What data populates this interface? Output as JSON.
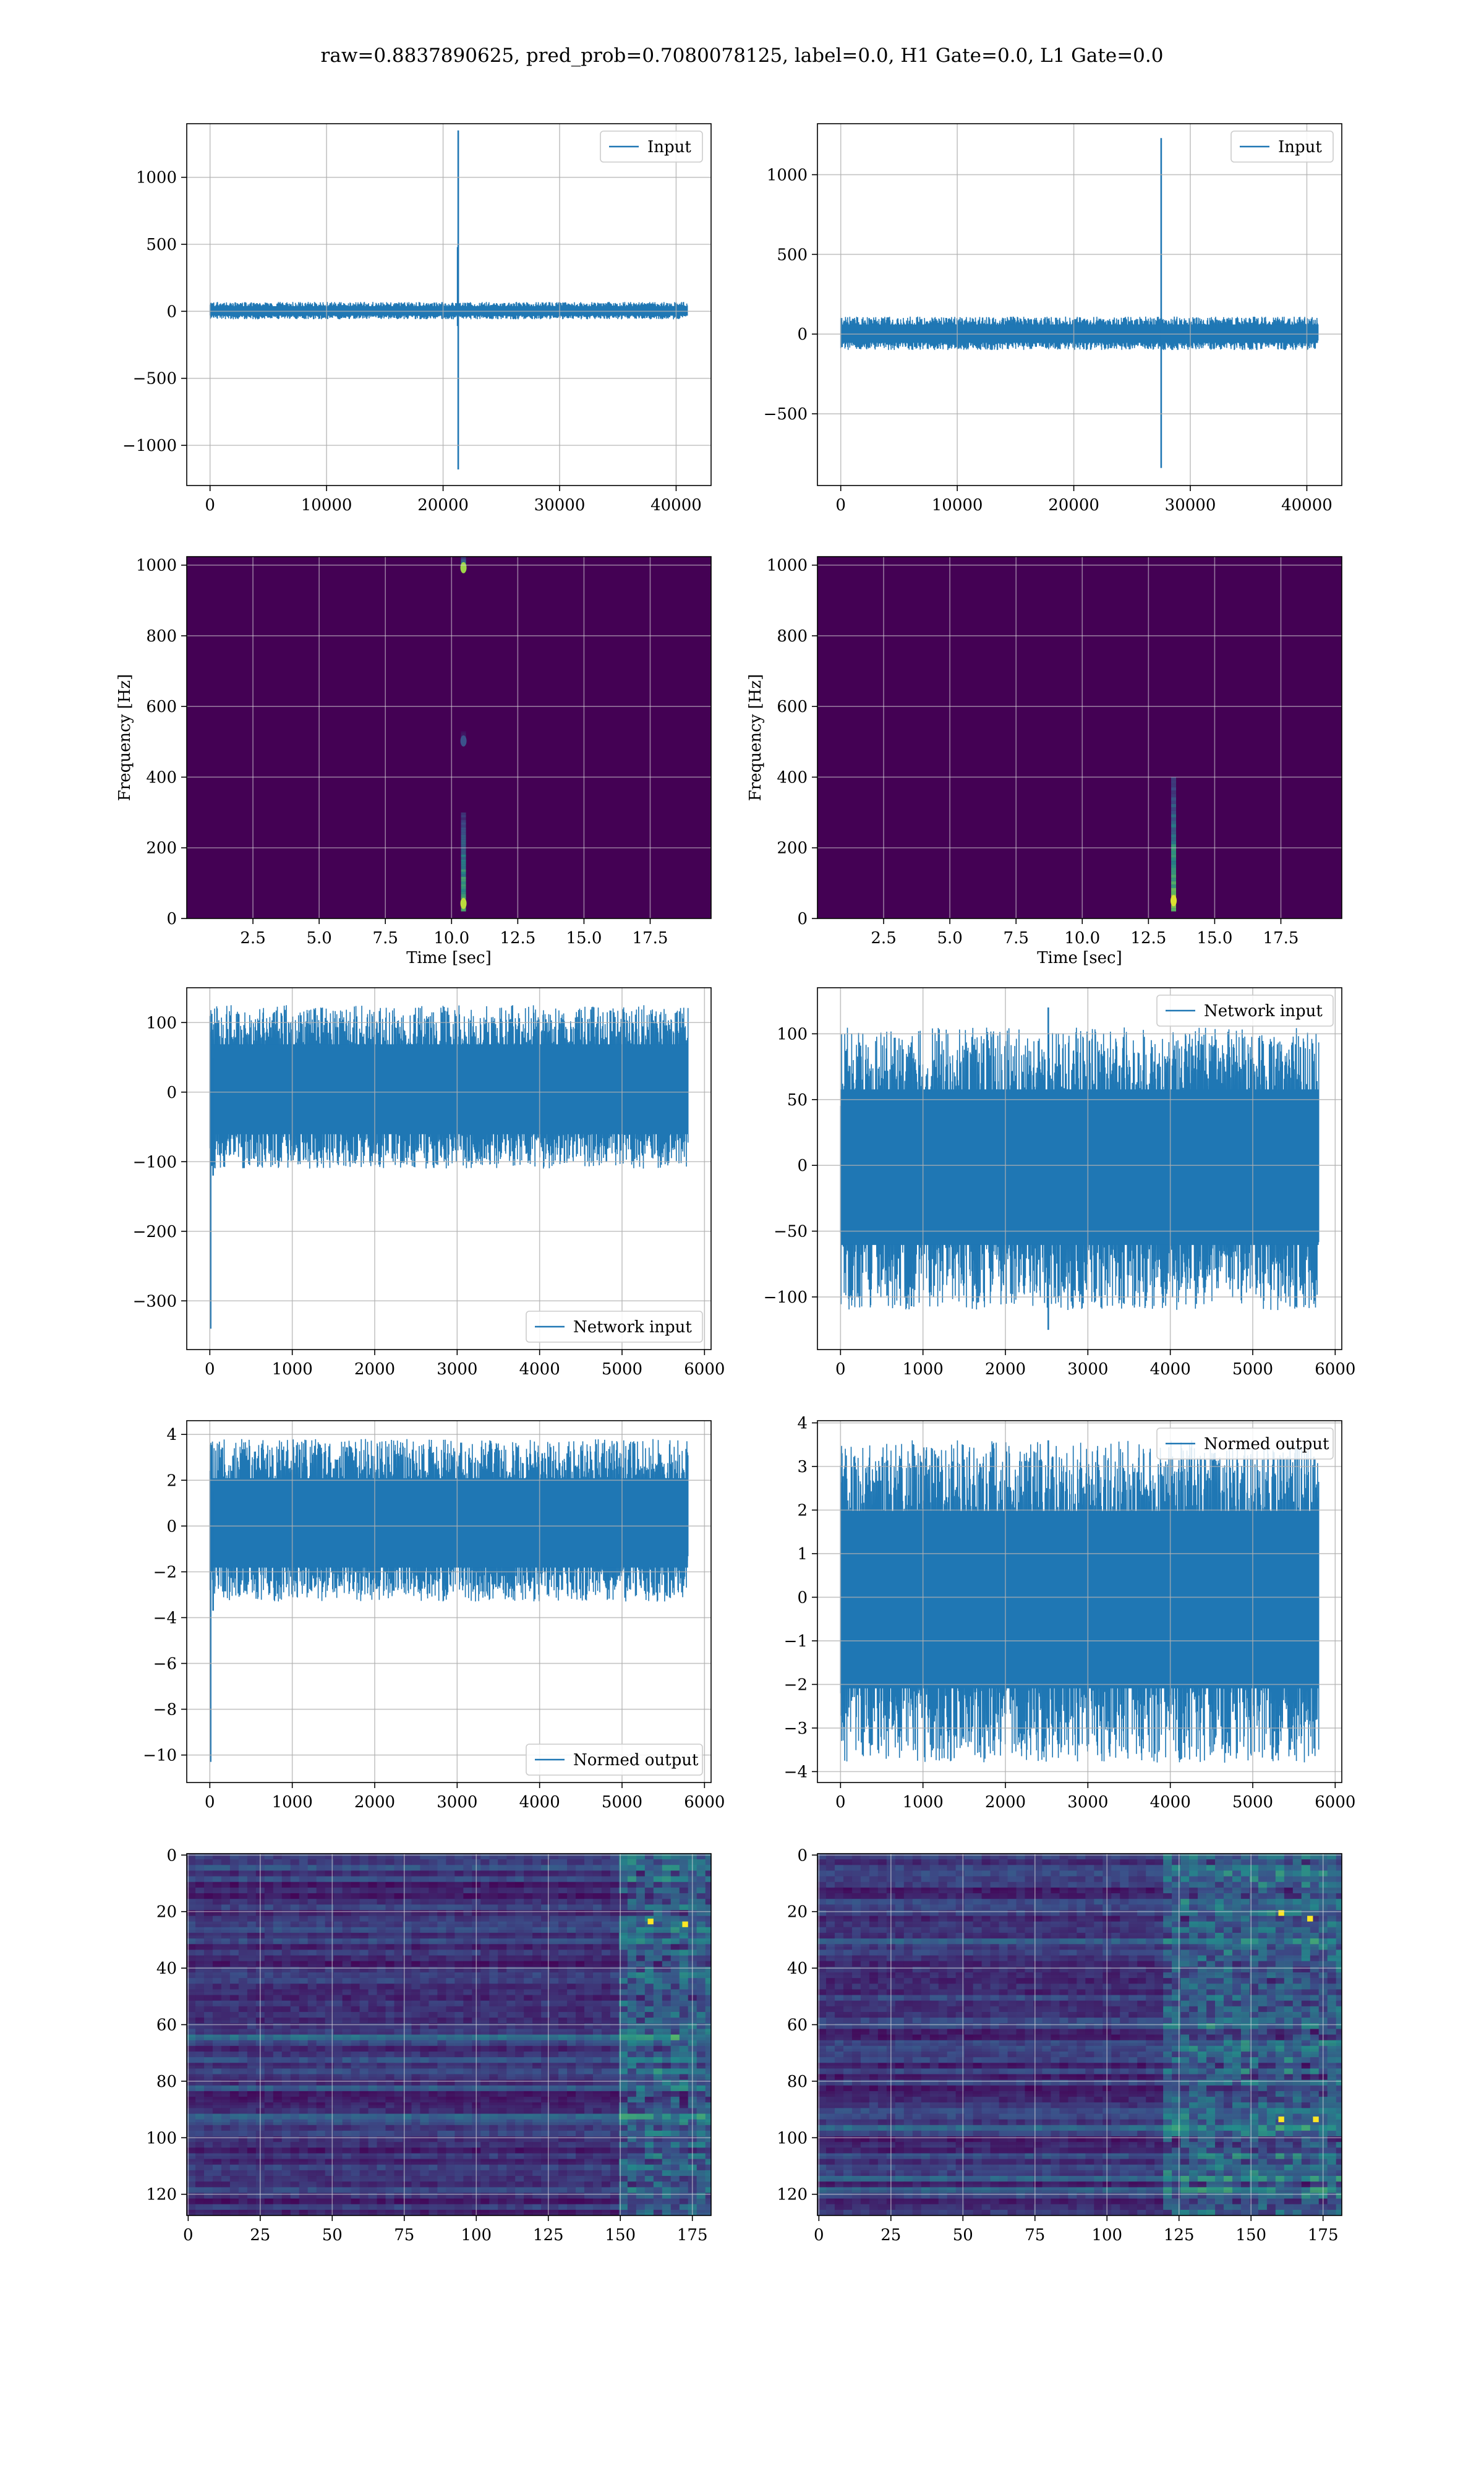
{
  "figure": {
    "title": "raw=0.8837890625, pred_prob=0.7080078125, label=0.0, H1 Gate=0.0, L1 Gate=0.0",
    "colors": {
      "line": "#1f77b4",
      "grid": "#b0b0b0",
      "viridis_low": "#440154",
      "viridis_high": "#fde725"
    }
  },
  "chart_data": [
    {
      "id": "p00",
      "type": "line",
      "legend": "Input",
      "legend_loc": "upper right",
      "xlim": [
        -2000,
        43000
      ],
      "ylim": [
        -1300,
        1400
      ],
      "xticks": [
        0,
        10000,
        20000,
        30000,
        40000
      ],
      "yticks": [
        -1000,
        -500,
        0,
        500,
        1000
      ],
      "xticklabels": [
        "0",
        "10000",
        "20000",
        "30000",
        "40000"
      ],
      "yticklabels": [
        "−1000",
        "−500",
        "0",
        "500",
        "1000"
      ],
      "signal": {
        "x_start": 0,
        "x_end": 40960,
        "noise_band": [
          -60,
          70
        ],
        "spikes": [
          {
            "x": 21300,
            "ymax": 1350,
            "ymin": -1180
          },
          {
            "x": 21250,
            "ymax": 480,
            "ymin": -110
          }
        ]
      },
      "grid": true
    },
    {
      "id": "p01",
      "type": "line",
      "legend": "Input",
      "legend_loc": "upper right",
      "xlim": [
        -2000,
        43000
      ],
      "ylim": [
        -950,
        1320
      ],
      "xticks": [
        0,
        10000,
        20000,
        30000,
        40000
      ],
      "yticks": [
        -500,
        0,
        500,
        1000
      ],
      "xticklabels": [
        "0",
        "10000",
        "20000",
        "30000",
        "40000"
      ],
      "yticklabels": [
        "−500",
        "0",
        "500",
        "1000"
      ],
      "signal": {
        "x_start": 0,
        "x_end": 40960,
        "noise_band": [
          -100,
          110
        ],
        "spikes": [
          {
            "x": 27500,
            "ymax": 1230,
            "ymin": -840
          }
        ]
      },
      "grid": true
    },
    {
      "id": "p10",
      "type": "heatmap",
      "xlabel": "Time [sec]",
      "ylabel": "Frequency [Hz]",
      "xlim": [
        0,
        19.8
      ],
      "ylim": [
        0,
        1024
      ],
      "xticks": [
        2.5,
        5.0,
        7.5,
        10.0,
        12.5,
        15.0,
        17.5
      ],
      "yticks": [
        0,
        200,
        400,
        600,
        800,
        1000
      ],
      "xticklabels": [
        "2.5",
        "5.0",
        "7.5",
        "10.0",
        "12.5",
        "15.0",
        "17.5"
      ],
      "yticklabels": [
        "0",
        "200",
        "400",
        "600",
        "800",
        "1000"
      ],
      "colormap": "viridis",
      "features": [
        {
          "t": 10.45,
          "f_low": 20,
          "f_high": 300,
          "intensity": 0.9
        },
        {
          "t": 10.45,
          "f_low": 990,
          "f_high": 1024,
          "intensity": 0.85
        },
        {
          "t": 10.45,
          "f_low": 500,
          "f_high": 530,
          "intensity": 0.25
        }
      ],
      "grid": true
    },
    {
      "id": "p11",
      "type": "heatmap",
      "xlabel": "Time [sec]",
      "ylabel": "Frequency [Hz]",
      "xlim": [
        0,
        19.8
      ],
      "ylim": [
        0,
        1024
      ],
      "xticks": [
        2.5,
        5.0,
        7.5,
        10.0,
        12.5,
        15.0,
        17.5
      ],
      "yticks": [
        0,
        200,
        400,
        600,
        800,
        1000
      ],
      "xticklabels": [
        "2.5",
        "5.0",
        "7.5",
        "10.0",
        "12.5",
        "15.0",
        "17.5"
      ],
      "yticklabels": [
        "0",
        "200",
        "400",
        "600",
        "800",
        "1000"
      ],
      "colormap": "viridis",
      "features": [
        {
          "t": 13.45,
          "f_low": 20,
          "f_high": 400,
          "intensity": 0.95
        }
      ],
      "grid": true
    },
    {
      "id": "p20",
      "type": "line",
      "legend": "Network input",
      "legend_loc": "lower right",
      "xlim": [
        -280,
        6080
      ],
      "ylim": [
        -370,
        150
      ],
      "xticks": [
        0,
        1000,
        2000,
        3000,
        4000,
        5000,
        6000
      ],
      "yticks": [
        -300,
        -200,
        -100,
        0,
        100
      ],
      "xticklabels": [
        "0",
        "1000",
        "2000",
        "3000",
        "4000",
        "5000",
        "6000"
      ],
      "yticklabels": [
        "−300",
        "−200",
        "−100",
        "0",
        "100"
      ],
      "signal": {
        "x_start": 0,
        "x_end": 5800,
        "noise_band": [
          -110,
          125
        ],
        "spikes": [
          {
            "x": 10,
            "ymax": 60,
            "ymin": -340
          },
          {
            "x": 40,
            "ymax": 50,
            "ymin": -120
          }
        ]
      },
      "grid": true
    },
    {
      "id": "p21",
      "type": "line",
      "legend": "Network input",
      "legend_loc": "upper right",
      "xlim": [
        -280,
        6080
      ],
      "ylim": [
        -140,
        135
      ],
      "xticks": [
        0,
        1000,
        2000,
        3000,
        4000,
        5000,
        6000
      ],
      "yticks": [
        -100,
        -50,
        0,
        50,
        100
      ],
      "xticklabels": [
        "0",
        "1000",
        "2000",
        "3000",
        "4000",
        "5000",
        "6000"
      ],
      "yticklabels": [
        "−100",
        "−50",
        "0",
        "50",
        "100"
      ],
      "signal": {
        "x_start": 0,
        "x_end": 5800,
        "noise_band": [
          -110,
          105
        ],
        "spikes": [
          {
            "x": 2520,
            "ymax": 120,
            "ymin": -125
          }
        ]
      },
      "grid": true
    },
    {
      "id": "p30",
      "type": "line",
      "legend": "Normed output",
      "legend_loc": "lower right",
      "xlim": [
        -280,
        6080
      ],
      "ylim": [
        -11.2,
        4.6
      ],
      "xticks": [
        0,
        1000,
        2000,
        3000,
        4000,
        5000,
        6000
      ],
      "yticks": [
        -10,
        -8,
        -6,
        -4,
        -2,
        0,
        2,
        4
      ],
      "xticklabels": [
        "0",
        "1000",
        "2000",
        "3000",
        "4000",
        "5000",
        "6000"
      ],
      "yticklabels": [
        "−10",
        "−8",
        "−6",
        "−4",
        "−2",
        "0",
        "2",
        "4"
      ],
      "signal": {
        "x_start": 0,
        "x_end": 5800,
        "noise_band": [
          -3.3,
          3.8
        ],
        "spikes": [
          {
            "x": 10,
            "ymax": 2.0,
            "ymin": -10.3
          },
          {
            "x": 40,
            "ymax": 1.5,
            "ymin": -3.7
          }
        ]
      },
      "grid": true
    },
    {
      "id": "p31",
      "type": "line",
      "legend": "Normed output",
      "legend_loc": "upper right",
      "xlim": [
        -280,
        6080
      ],
      "ylim": [
        -4.25,
        4.05
      ],
      "xticks": [
        0,
        1000,
        2000,
        3000,
        4000,
        5000,
        6000
      ],
      "yticks": [
        -4,
        -3,
        -2,
        -1,
        0,
        1,
        2,
        3,
        4
      ],
      "xticklabels": [
        "0",
        "1000",
        "2000",
        "3000",
        "4000",
        "5000",
        "6000"
      ],
      "yticklabels": [
        "−4",
        "−3",
        "−2",
        "−1",
        "0",
        "1",
        "2",
        "3",
        "4"
      ],
      "signal": {
        "x_start": 0,
        "x_end": 5800,
        "noise_band": [
          -3.8,
          3.6
        ],
        "spikes": [
          {
            "x": 2520,
            "ymax": 3.6,
            "ymin": -3.0
          }
        ]
      },
      "grid": true
    },
    {
      "id": "p40",
      "type": "heatmap",
      "xlim": [
        -0.5,
        181.5
      ],
      "ylim": [
        127.5,
        -0.5
      ],
      "xticks": [
        0,
        25,
        50,
        75,
        100,
        125,
        150,
        175
      ],
      "yticks": [
        0,
        20,
        40,
        60,
        80,
        100,
        120
      ],
      "xticklabels": [
        "0",
        "25",
        "50",
        "75",
        "100",
        "125",
        "150",
        "175"
      ],
      "yticklabels": [
        "0",
        "20",
        "40",
        "60",
        "80",
        "100",
        "120"
      ],
      "colormap": "viridis",
      "dims": [
        128,
        182
      ],
      "active_from_col": 150,
      "hot_spots": [
        {
          "row": 23,
          "col": 160
        },
        {
          "row": 24,
          "col": 172
        }
      ],
      "grid": true
    },
    {
      "id": "p41",
      "type": "heatmap",
      "xlim": [
        -0.5,
        181.5
      ],
      "ylim": [
        127.5,
        -0.5
      ],
      "xticks": [
        0,
        25,
        50,
        75,
        100,
        125,
        150,
        175
      ],
      "yticks": [
        0,
        20,
        40,
        60,
        80,
        100,
        120
      ],
      "xticklabels": [
        "0",
        "25",
        "50",
        "75",
        "100",
        "125",
        "150",
        "175"
      ],
      "yticklabels": [
        "0",
        "20",
        "40",
        "60",
        "80",
        "100",
        "120"
      ],
      "colormap": "viridis",
      "dims": [
        128,
        182
      ],
      "active_from_col": 120,
      "hot_spots": [
        {
          "row": 20,
          "col": 160
        },
        {
          "row": 22,
          "col": 170
        },
        {
          "row": 93,
          "col": 160
        },
        {
          "row": 93,
          "col": 172
        }
      ],
      "grid": true
    }
  ]
}
